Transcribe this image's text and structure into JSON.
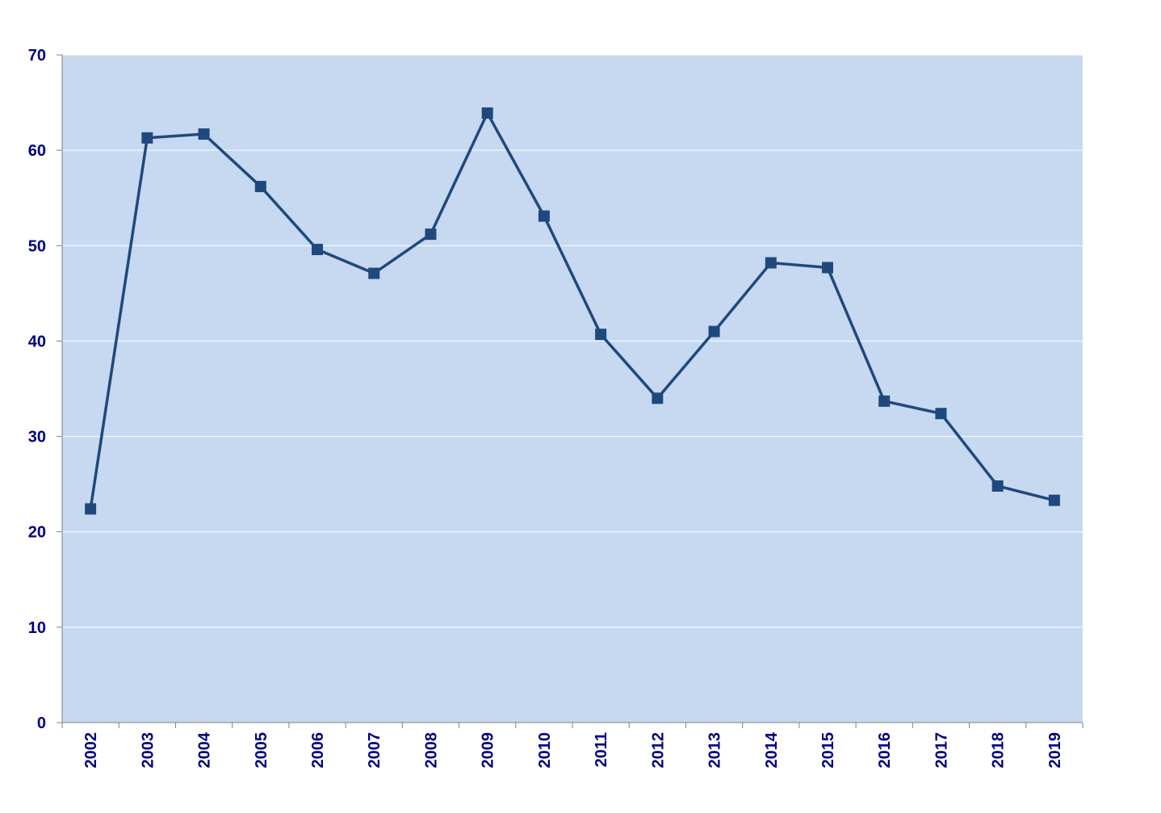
{
  "chart_data": {
    "type": "line",
    "categories": [
      "2002",
      "2003",
      "2004",
      "2005",
      "2006",
      "2007",
      "2008",
      "2009",
      "2010",
      "2011",
      "2012",
      "2013",
      "2014",
      "2015",
      "2016",
      "2017",
      "2018",
      "2019"
    ],
    "values": [
      22.4,
      61.3,
      61.7,
      56.2,
      49.6,
      47.1,
      51.2,
      63.9,
      53.1,
      40.7,
      34.0,
      41.0,
      48.2,
      47.7,
      33.7,
      32.4,
      24.8,
      23.3
    ],
    "color": "#1f497d",
    "plot_background": "#c6d9f0",
    "ylim": [
      0,
      70
    ],
    "yticks": [
      0,
      10,
      20,
      30,
      40,
      50,
      60,
      70
    ],
    "grid": true
  }
}
